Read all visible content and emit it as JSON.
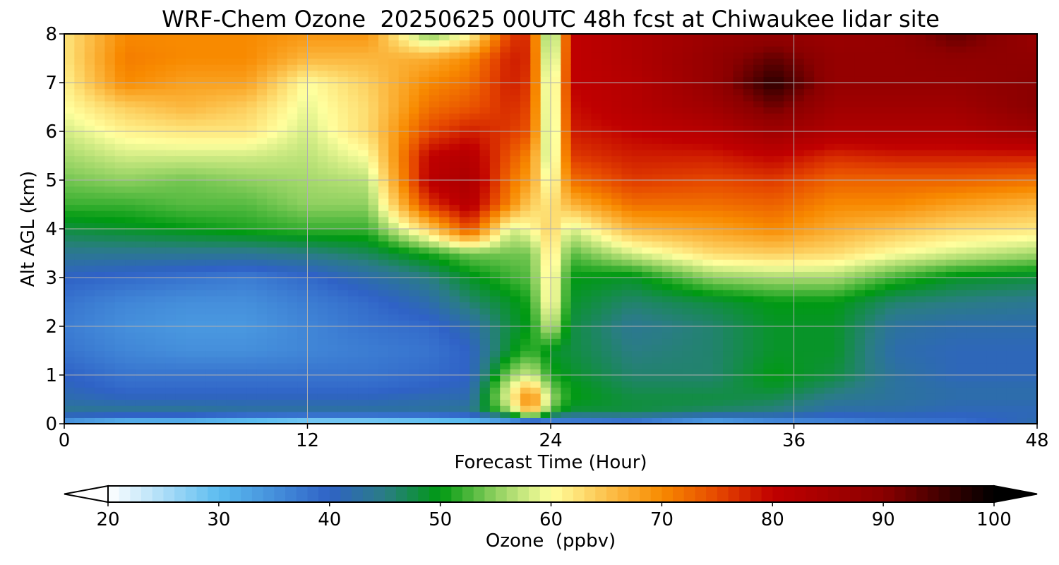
{
  "chart_data": {
    "type": "heatmap",
    "title": "WRF-Chem Ozone  20250625 00UTC 48h fcst at Chiwaukee lidar site",
    "xlabel": "Forecast Time (Hour)",
    "ylabel": "Alt AGL (km)",
    "xlim": [
      0,
      48
    ],
    "ylim": [
      0,
      8
    ],
    "xticks": [
      0,
      12,
      24,
      36,
      48
    ],
    "yticks": [
      0,
      1,
      2,
      3,
      4,
      5,
      6,
      7,
      8
    ],
    "grid": true,
    "z_label": "Ozone  (ppbv)",
    "z_range": [
      20,
      100
    ],
    "z_ticks": [
      20,
      30,
      40,
      50,
      60,
      70,
      80,
      90,
      100
    ],
    "colorbar_extend": "both",
    "colorbar_placement": "bottom",
    "colormap": [
      [
        20,
        "#ffffff"
      ],
      [
        30,
        "#5bbcf0"
      ],
      [
        40,
        "#2f62c6"
      ],
      [
        45,
        "#2a7d84"
      ],
      [
        50,
        "#009a12"
      ],
      [
        55,
        "#8fd060"
      ],
      [
        60,
        "#ffff9e"
      ],
      [
        65,
        "#fcc24d"
      ],
      [
        70,
        "#f88a00"
      ],
      [
        75,
        "#e64800"
      ],
      [
        80,
        "#c00000"
      ],
      [
        90,
        "#8a0000"
      ],
      [
        100,
        "#000000"
      ]
    ],
    "altitudes_km": [
      0,
      0.25,
      0.5,
      0.75,
      1,
      1.5,
      2,
      2.5,
      3,
      3.5,
      4,
      4.5,
      5,
      5.5,
      6,
      6.5,
      7,
      7.5,
      8
    ],
    "series": [
      {
        "x": 0,
        "values": [
          32,
          44,
          42,
          41,
          40,
          38,
          37,
          38,
          40,
          44,
          48,
          52,
          54,
          56,
          58,
          60,
          61,
          62,
          62
        ]
      },
      {
        "x": 3,
        "values": [
          28,
          44,
          41,
          39,
          38,
          36,
          35,
          36,
          39,
          44,
          49,
          52,
          55,
          58,
          61,
          64,
          70,
          71,
          70
        ]
      },
      {
        "x": 6,
        "values": [
          28,
          44,
          41,
          39,
          38,
          35,
          34,
          35,
          38,
          44,
          50,
          53,
          54,
          58,
          62,
          66,
          68,
          70,
          70
        ]
      },
      {
        "x": 9,
        "values": [
          26,
          43,
          41,
          39,
          38,
          35,
          34,
          35,
          37,
          44,
          51,
          53,
          55,
          58,
          62,
          64,
          68,
          70,
          70
        ]
      },
      {
        "x": 12,
        "values": [
          24,
          43,
          41,
          39,
          38,
          36,
          36,
          37,
          39,
          45,
          52,
          55,
          56,
          57,
          58,
          59,
          60,
          66,
          69
        ]
      },
      {
        "x": 15,
        "values": [
          24,
          43,
          41,
          39,
          38,
          37,
          38,
          39,
          42,
          47,
          52,
          55,
          57,
          60,
          63,
          63,
          64,
          66,
          69
        ]
      },
      {
        "x": 18,
        "values": [
          25,
          43,
          42,
          40,
          39,
          38,
          39,
          42,
          45,
          51,
          64,
          76,
          81,
          80,
          75,
          72,
          70,
          67,
          54
        ]
      },
      {
        "x": 20,
        "values": [
          26,
          44,
          42,
          41,
          40,
          40,
          42,
          46,
          49,
          54,
          75,
          82,
          84,
          82,
          78,
          74,
          72,
          70,
          60
        ]
      },
      {
        "x": 22,
        "values": [
          28,
          55,
          60,
          59,
          55,
          49,
          48,
          49,
          52,
          54,
          58,
          70,
          72,
          74,
          76,
          77,
          78,
          78,
          76
        ]
      },
      {
        "x": 23,
        "values": [
          30,
          66,
          72,
          66,
          58,
          52,
          50,
          51,
          53,
          54,
          60,
          64,
          68,
          70,
          74,
          75,
          76,
          77,
          77
        ]
      },
      {
        "x": 24,
        "values": [
          32,
          52,
          56,
          54,
          51,
          49,
          58,
          62,
          62,
          63,
          64,
          62,
          58,
          55,
          54,
          54,
          54,
          52,
          50
        ]
      },
      {
        "x": 25,
        "values": [
          34,
          48,
          50,
          50,
          49,
          48,
          48,
          49,
          50,
          53,
          58,
          66,
          72,
          76,
          78,
          79,
          80,
          80,
          80
        ]
      },
      {
        "x": 28,
        "values": [
          35,
          48,
          48,
          47,
          46,
          45,
          44,
          46,
          49,
          58,
          66,
          72,
          76,
          78,
          80,
          82,
          82,
          83,
          83
        ]
      },
      {
        "x": 32,
        "values": [
          30,
          46,
          48,
          47,
          46,
          46,
          46,
          48,
          55,
          63,
          68,
          72,
          75,
          78,
          82,
          86,
          88,
          88,
          87
        ]
      },
      {
        "x": 35,
        "values": [
          33,
          45,
          47,
          49,
          50,
          49,
          49,
          50,
          56,
          64,
          70,
          73,
          76,
          80,
          86,
          92,
          97,
          93,
          88
        ]
      },
      {
        "x": 38,
        "values": [
          35,
          42,
          44,
          46,
          48,
          49,
          49,
          50,
          56,
          63,
          67,
          70,
          73,
          77,
          83,
          86,
          88,
          88,
          87
        ]
      },
      {
        "x": 41,
        "values": [
          37,
          42,
          43,
          43,
          43,
          42,
          43,
          46,
          52,
          60,
          65,
          70,
          73,
          78,
          83,
          86,
          88,
          88,
          88
        ]
      },
      {
        "x": 44,
        "values": [
          38,
          41,
          42,
          42,
          41,
          41,
          42,
          45,
          49,
          58,
          63,
          68,
          73,
          78,
          83,
          86,
          88,
          89,
          93
        ]
      },
      {
        "x": 48,
        "values": [
          42,
          41,
          42,
          42,
          41,
          41,
          42,
          44,
          48,
          56,
          62,
          66,
          72,
          78,
          86,
          90,
          90,
          89,
          87
        ]
      }
    ]
  }
}
